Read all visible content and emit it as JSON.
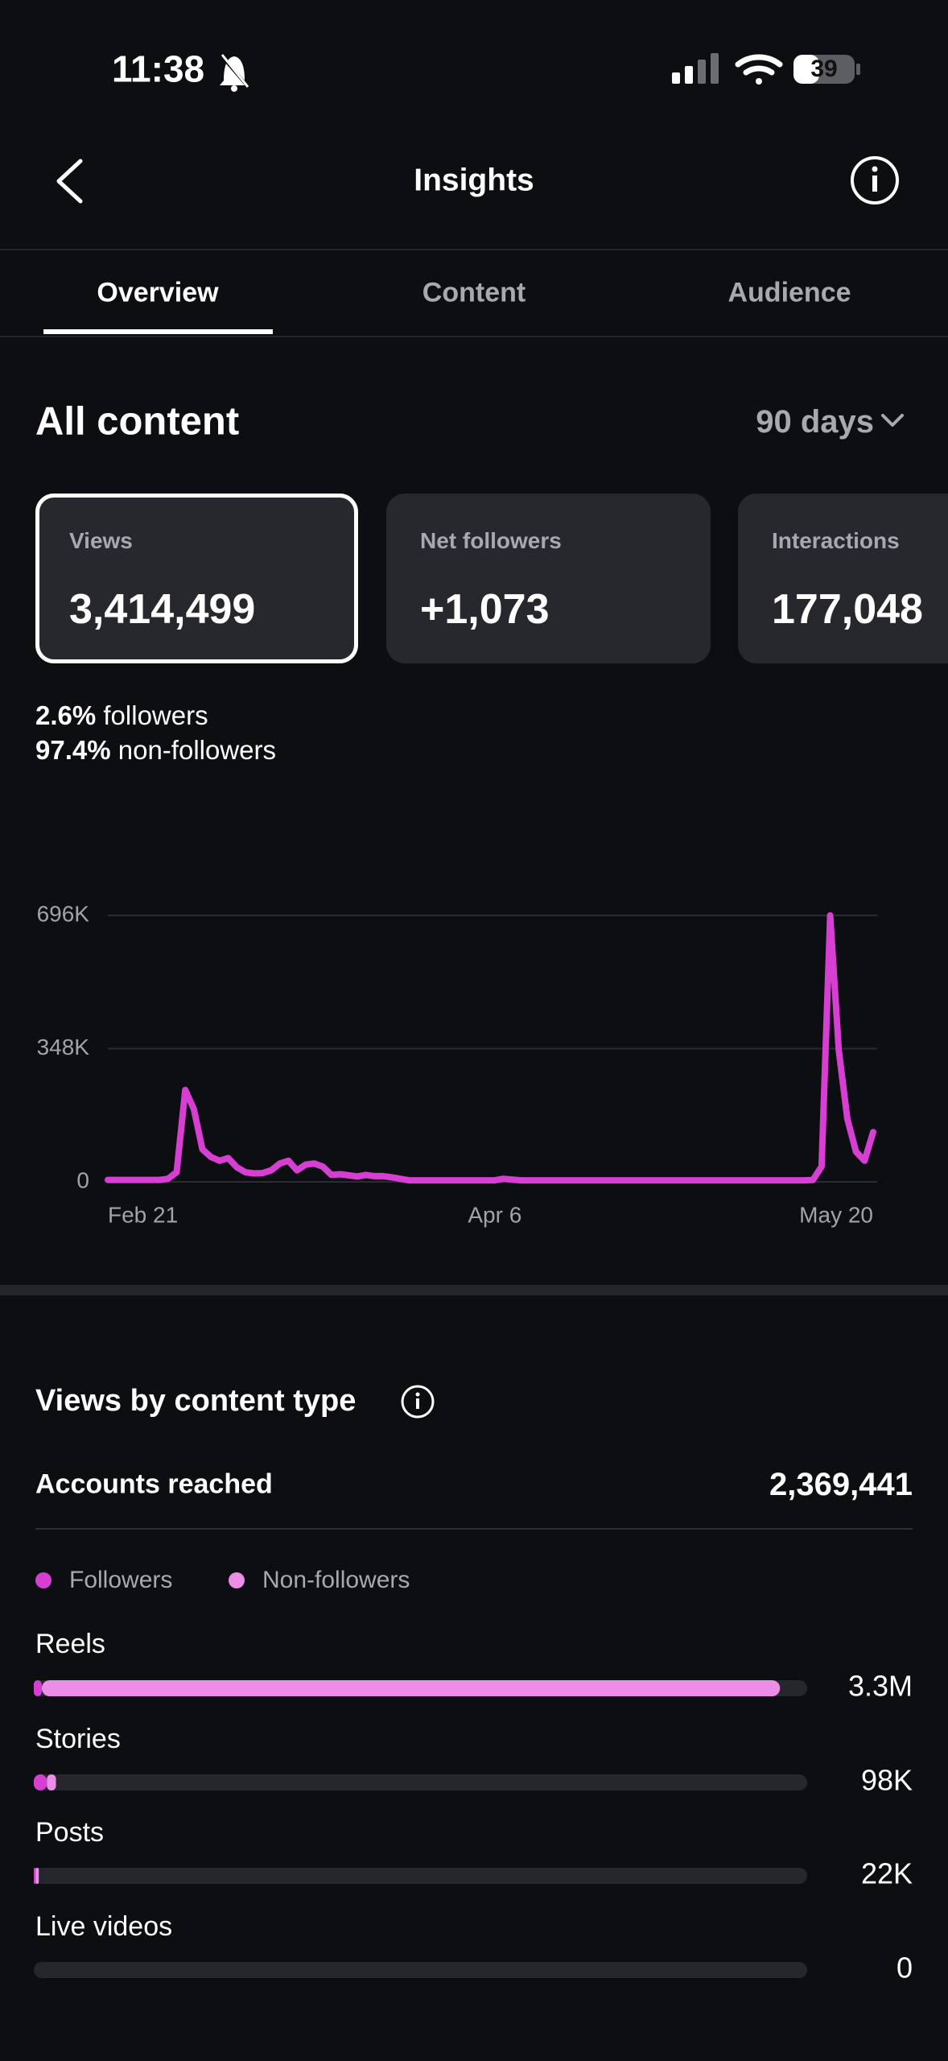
{
  "status_bar": {
    "time": "11:38",
    "battery": "39"
  },
  "header": {
    "title": "Insights"
  },
  "tabs": [
    "Overview",
    "Content",
    "Audience"
  ],
  "section": {
    "title": "All content",
    "range": "90 days"
  },
  "cards": [
    {
      "label": "Views",
      "value": "3,414,499"
    },
    {
      "label": "Net followers",
      "value": "+1,073"
    },
    {
      "label": "Interactions",
      "value": "177,048"
    }
  ],
  "audience_split": [
    {
      "percent": "2.6%",
      "label": "followers"
    },
    {
      "percent": "97.4%",
      "label": "non-followers"
    }
  ],
  "chart_data": {
    "type": "line",
    "color": "#d63fd1",
    "categories": [
      "Feb 21",
      null,
      null,
      null,
      null,
      null,
      null,
      null,
      null,
      null,
      null,
      null,
      null,
      null,
      null,
      null,
      null,
      null,
      null,
      null,
      null,
      null,
      null,
      null,
      null,
      null,
      null,
      null,
      null,
      null,
      null,
      null,
      null,
      null,
      null,
      null,
      null,
      null,
      null,
      null,
      null,
      null,
      null,
      null,
      null,
      "Apr 6",
      null,
      null,
      null,
      null,
      null,
      null,
      null,
      null,
      null,
      null,
      null,
      null,
      null,
      null,
      null,
      null,
      null,
      null,
      null,
      null,
      null,
      null,
      null,
      null,
      null,
      null,
      null,
      null,
      null,
      null,
      null,
      null,
      null,
      null,
      null,
      null,
      null,
      null,
      null,
      null,
      null,
      null,
      null,
      "May 20"
    ],
    "values": [
      5000,
      5000,
      5000,
      5000,
      5000,
      5000,
      5000,
      8000,
      25000,
      240000,
      190000,
      85000,
      65000,
      55000,
      62000,
      38000,
      25000,
      22000,
      23000,
      30000,
      48000,
      55000,
      30000,
      45000,
      48000,
      40000,
      18000,
      20000,
      17000,
      14000,
      18000,
      15000,
      15000,
      12000,
      8000,
      4000,
      4000,
      4000,
      4000,
      4000,
      4000,
      4000,
      4000,
      4000,
      4000,
      4000,
      8000,
      6000,
      4000,
      4000,
      4000,
      4000,
      4000,
      4000,
      4000,
      4000,
      4000,
      4000,
      4000,
      4000,
      4000,
      4000,
      4000,
      4000,
      4000,
      4000,
      4000,
      4000,
      4000,
      4000,
      4000,
      4000,
      4000,
      4000,
      4000,
      4000,
      4000,
      4000,
      4000,
      4000,
      4000,
      4000,
      5000,
      40000,
      696000,
      343000,
      165000,
      79000,
      55000,
      130000
    ],
    "ylim": [
      0,
      696000
    ],
    "yticks": [
      0,
      {
        "value": 348000,
        "label": "348K"
      },
      {
        "value": 696000,
        "label": "696K"
      }
    ],
    "grid": true
  },
  "views_by_type": {
    "title": "Views by content type",
    "accounts_reached": {
      "label": "Accounts reached",
      "value": "2,369,441"
    },
    "legend": [
      {
        "name": "Followers",
        "color": "#d63fd1"
      },
      {
        "name": "Non-followers",
        "color": "#ec8ee8"
      }
    ],
    "xlim": [
      0,
      3420000
    ],
    "rows": [
      {
        "name": "Reels",
        "values": [
          35000,
          3265000
        ],
        "value_label": "3.3M"
      },
      {
        "name": "Stories",
        "values": [
          58000,
          40000
        ],
        "value_label": "98K"
      },
      {
        "name": "Posts",
        "values": [
          8000,
          14000
        ],
        "value_label": "22K"
      },
      {
        "name": "Live videos",
        "values": [
          0,
          0
        ],
        "value_label": "0"
      }
    ]
  }
}
